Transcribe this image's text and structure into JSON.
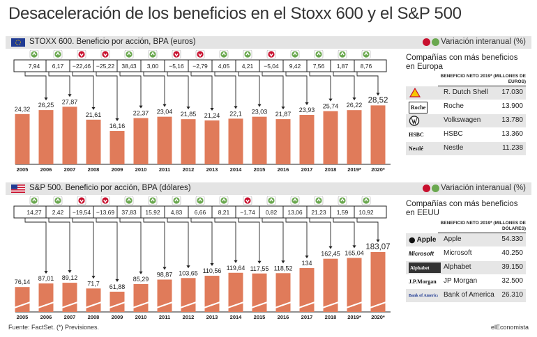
{
  "title": "Desaceleración de los beneficios en el Stoxx 600 y el S&P 500",
  "legend_label": "Variación interanual (%)",
  "colors": {
    "bar": "#e07b5a",
    "up": "#6aa84f",
    "down": "#c8102e",
    "band": "#e4e4e4",
    "accent": "#1f3a93"
  },
  "sections": [
    {
      "flag_icon": "eu-flag-icon",
      "band_title": "STOXX 600. Beneficio por acción, BPA (euros)",
      "side_title": "Compañías con más beneficios en Europa",
      "side_header": "BENEFICIO NETO 2019* (MILLONES DE EUROS)",
      "companies": [
        {
          "logo_icon": "shell-logo-icon",
          "name": "R. Dutch Shell",
          "value": "17.030"
        },
        {
          "logo_icon": "roche-logo-icon",
          "logo_text": "Roche",
          "name": "Roche",
          "value": "13.900"
        },
        {
          "logo_icon": "volkswagen-logo-icon",
          "name": "Volkswagen",
          "value": "13.780"
        },
        {
          "logo_icon": "hsbc-logo-icon",
          "logo_text": "HSBC",
          "name": "HSBC",
          "value": "13.360"
        },
        {
          "logo_icon": "nestle-logo-icon",
          "logo_text": "Nestlé",
          "name": "Nestle",
          "value": "11.238"
        }
      ]
    },
    {
      "flag_icon": "us-flag-icon",
      "band_title": "S&P 500. Beneficio por acción, BPA (dólares)",
      "side_title": "Compañías con más beneficios en EEUU",
      "side_header": "BENEFICIO NETO 2019* (MILLONES DE DÓLARES)",
      "companies": [
        {
          "logo_icon": "apple-logo-icon",
          "logo_text": "Apple",
          "name": "Apple",
          "value": "54.330"
        },
        {
          "logo_icon": "microsoft-logo-icon",
          "logo_text": "Microsoft",
          "name": "Microsoft",
          "value": "40.250"
        },
        {
          "logo_icon": "alphabet-logo-icon",
          "logo_text": "Alphabet",
          "name": "Alphabet",
          "value": "39.150"
        },
        {
          "logo_icon": "jpmorgan-logo-icon",
          "logo_text": "J.P.Morgan",
          "name": "JP Morgan",
          "value": "32.500"
        },
        {
          "logo_icon": "bankofamerica-logo-icon",
          "logo_text": "Bank of America",
          "name": "Bank of America",
          "value": "26.310"
        }
      ]
    }
  ],
  "chart_data": [
    {
      "type": "bar",
      "categories": [
        "2005",
        "2006",
        "2007",
        "2008",
        "2009",
        "2010",
        "2011",
        "2012",
        "2013",
        "2014",
        "2015",
        "2016",
        "2017",
        "2018",
        "2019*",
        "2020*"
      ],
      "values": [
        24.32,
        26.25,
        27.87,
        21.61,
        16.16,
        22.37,
        23.04,
        21.85,
        21.24,
        22.1,
        23.03,
        21.87,
        23.93,
        25.74,
        26.22,
        28.52
      ],
      "value_labels": [
        "24,32",
        "26,25",
        "27,87",
        "21,61",
        "16,16",
        "22,37",
        "23,04",
        "21,85",
        "21,24",
        "22,1",
        "23,03",
        "21,87",
        "23,93",
        "25,74",
        "26,22",
        "28,52"
      ],
      "changes": [
        7.94,
        6.17,
        -22.46,
        -25.22,
        38.43,
        3.0,
        -5.16,
        -2.79,
        4.05,
        4.21,
        -5.04,
        9.42,
        7.56,
        1.87,
        8.76
      ],
      "change_labels": [
        "7,94",
        "6,17",
        "−22,46",
        "−25,22",
        "38,43",
        "3,00",
        "−5,16",
        "−2,79",
        "4,05",
        "4,21",
        "−5,04",
        "9,42",
        "7,56",
        "1,87",
        "8,76"
      ],
      "ylim": [
        0,
        31
      ],
      "axis_break": false
    },
    {
      "type": "bar",
      "categories": [
        "2005",
        "2006",
        "2007",
        "2008",
        "2009",
        "2010",
        "2011",
        "2012",
        "2013",
        "2014",
        "2015",
        "2016",
        "2017",
        "2018",
        "2019*",
        "2020*"
      ],
      "values": [
        76.14,
        87.01,
        89.12,
        71.7,
        61.88,
        85.29,
        98.87,
        103.65,
        110.56,
        119.64,
        117.55,
        118.52,
        134,
        162.45,
        165.04,
        183.07
      ],
      "value_labels": [
        "76,14",
        "87,01",
        "89,12",
        "71,7",
        "61,88",
        "85,29",
        "98,87",
        "103,65",
        "110,56",
        "119,64",
        "117,55",
        "118,52",
        "134",
        "162,45",
        "165,04",
        "183,07"
      ],
      "changes": [
        14.27,
        2.42,
        -19.54,
        -13.69,
        37.83,
        15.92,
        4.83,
        6.66,
        8.21,
        -1.74,
        0.82,
        13.06,
        21.23,
        1.59,
        10.92
      ],
      "change_labels": [
        "14,27",
        "2,42",
        "−19,54",
        "−13,69",
        "37,83",
        "15,92",
        "4,83",
        "6,66",
        "8,21",
        "−1,74",
        "0,82",
        "13,06",
        "21,23",
        "1,59",
        "10,92"
      ],
      "ylim": [
        0,
        200
      ],
      "axis_break": true
    }
  ],
  "footer": {
    "source": "Fuente: FactSet. (*) Previsiones.",
    "brand": "elEconomista"
  }
}
